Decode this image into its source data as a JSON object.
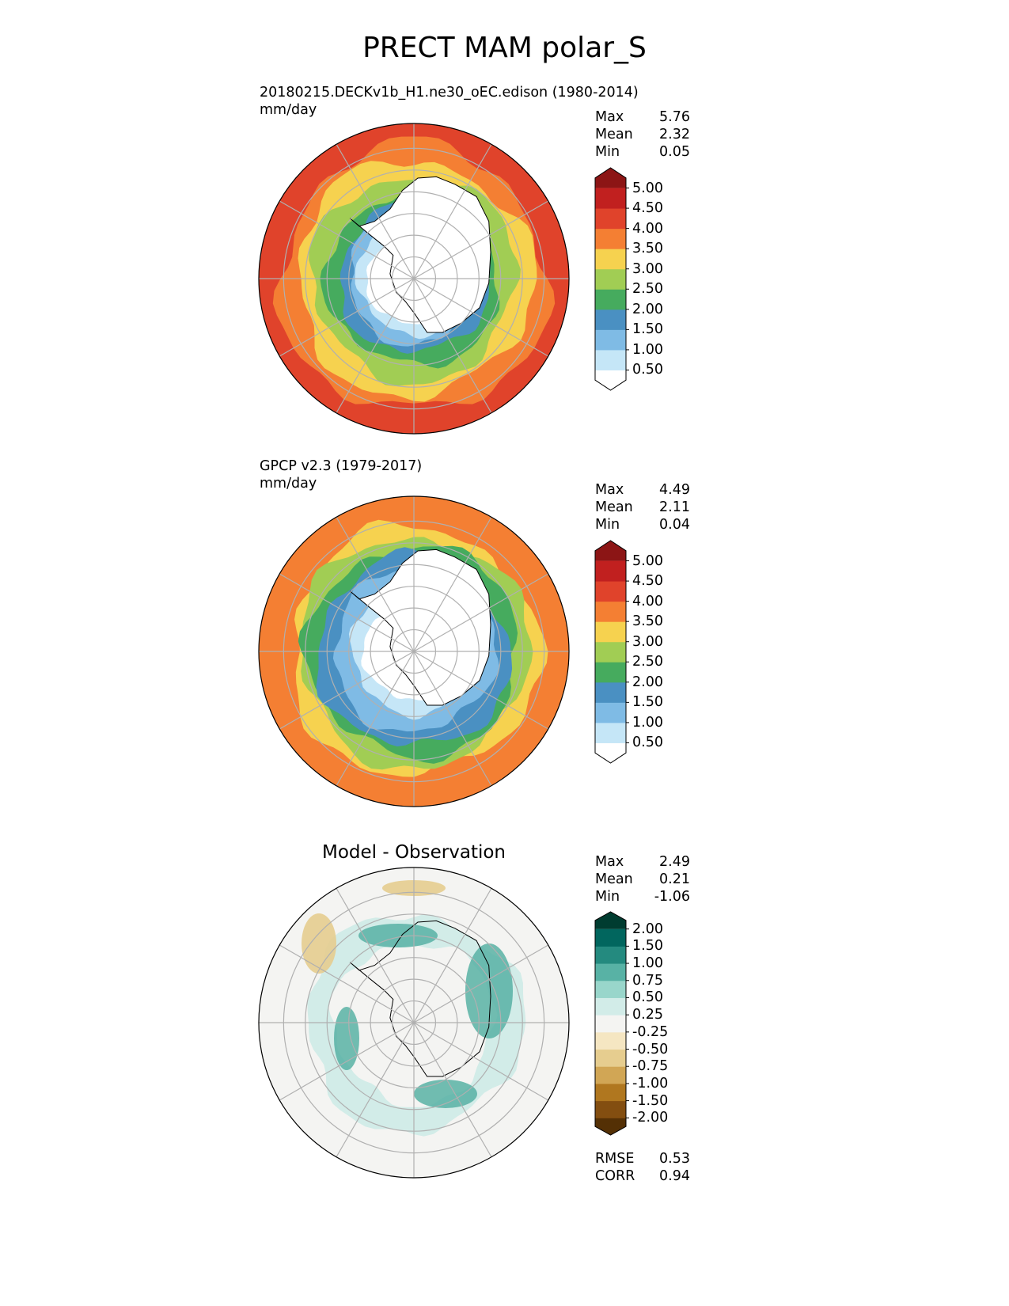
{
  "title": "PRECT MAM polar_S",
  "panels": [
    {
      "id": "test",
      "title_line1": "20180215.DECKv1b_H1.ne30_oEC.edison (1980-2014)",
      "title_line2": "mm/day",
      "stats": [
        {
          "label": "Max",
          "value": "5.76"
        },
        {
          "label": "Mean",
          "value": "2.32"
        },
        {
          "label": "Min",
          "value": "0.05"
        }
      ],
      "colorbar": {
        "extend": "both",
        "labels": [
          "0.50",
          "1.00",
          "1.50",
          "2.00",
          "2.50",
          "3.00",
          "3.50",
          "4.00",
          "4.50",
          "5.00"
        ],
        "colors": [
          "#ffffff",
          "#c5e6f7",
          "#7fbbe5",
          "#4a90c2",
          "#46ab5e",
          "#a1cd54",
          "#f6d24f",
          "#f47f33",
          "#e0432b",
          "#c1201f",
          "#8c1515"
        ]
      },
      "rings": [
        {
          "color": "#e0432b",
          "inner": 0.86
        },
        {
          "color": "#f47f33",
          "inner": 0.76
        },
        {
          "color": "#f6d24f",
          "inner": 0.66
        },
        {
          "color": "#a1cd54",
          "inner": 0.56
        },
        {
          "color": "#46ab5e",
          "inner": 0.48
        },
        {
          "color": "#4a90c2",
          "inner": 0.42
        },
        {
          "color": "#7fbbe5",
          "inner": 0.36
        },
        {
          "color": "#c5e6f7",
          "inner": 0.3
        }
      ]
    },
    {
      "id": "reference",
      "title_line1": "GPCP v2.3 (1979-2017)",
      "title_line2": "mm/day",
      "stats": [
        {
          "label": "Max",
          "value": "4.49"
        },
        {
          "label": "Mean",
          "value": "2.11"
        },
        {
          "label": "Min",
          "value": "0.04"
        }
      ],
      "colorbar": {
        "extend": "both",
        "labels": [
          "0.50",
          "1.00",
          "1.50",
          "2.00",
          "2.50",
          "3.00",
          "3.50",
          "4.00",
          "4.50",
          "5.00"
        ],
        "colors": [
          "#ffffff",
          "#c5e6f7",
          "#7fbbe5",
          "#4a90c2",
          "#46ab5e",
          "#a1cd54",
          "#f6d24f",
          "#f47f33",
          "#e0432b",
          "#c1201f",
          "#8c1515"
        ]
      },
      "rings": [
        {
          "color": "#f47f33",
          "inner": 0.8
        },
        {
          "color": "#f6d24f",
          "inner": 0.74
        },
        {
          "color": "#a1cd54",
          "inner": 0.68
        },
        {
          "color": "#46ab5e",
          "inner": 0.62
        },
        {
          "color": "#4a90c2",
          "inner": 0.52
        },
        {
          "color": "#7fbbe5",
          "inner": 0.4
        },
        {
          "color": "#c5e6f7",
          "inner": 0.32
        }
      ]
    },
    {
      "id": "diff",
      "title_center": "Model - Observation",
      "stats": [
        {
          "label": "Max",
          "value": "2.49"
        },
        {
          "label": "Mean",
          "value": "0.21"
        },
        {
          "label": "Min",
          "value": "-1.06"
        }
      ],
      "bottom_stats": [
        {
          "label": "RMSE",
          "value": "0.53"
        },
        {
          "label": "CORR",
          "value": "0.94"
        }
      ],
      "colorbar": {
        "extend": "both",
        "labels": [
          "-2.00",
          "-1.50",
          "-1.00",
          "-0.75",
          "-0.50",
          "-0.25",
          "0.25",
          "0.50",
          "0.75",
          "1.00",
          "1.50",
          "2.00"
        ],
        "colors": [
          "#543005",
          "#834e10",
          "#b0771f",
          "#d1a655",
          "#e6cd8f",
          "#f5e6c2",
          "#f4f4f2",
          "#d2ece8",
          "#99d6cb",
          "#58b2a5",
          "#248a7f",
          "#01665e",
          "#003c30"
        ]
      },
      "rings": [
        {
          "color": "#f4f4f2",
          "inner": 0.7
        },
        {
          "color": "#d2ece8",
          "inner": 0.52
        },
        {
          "color": "#f4f4f2",
          "inner": 0.0
        }
      ]
    }
  ]
}
